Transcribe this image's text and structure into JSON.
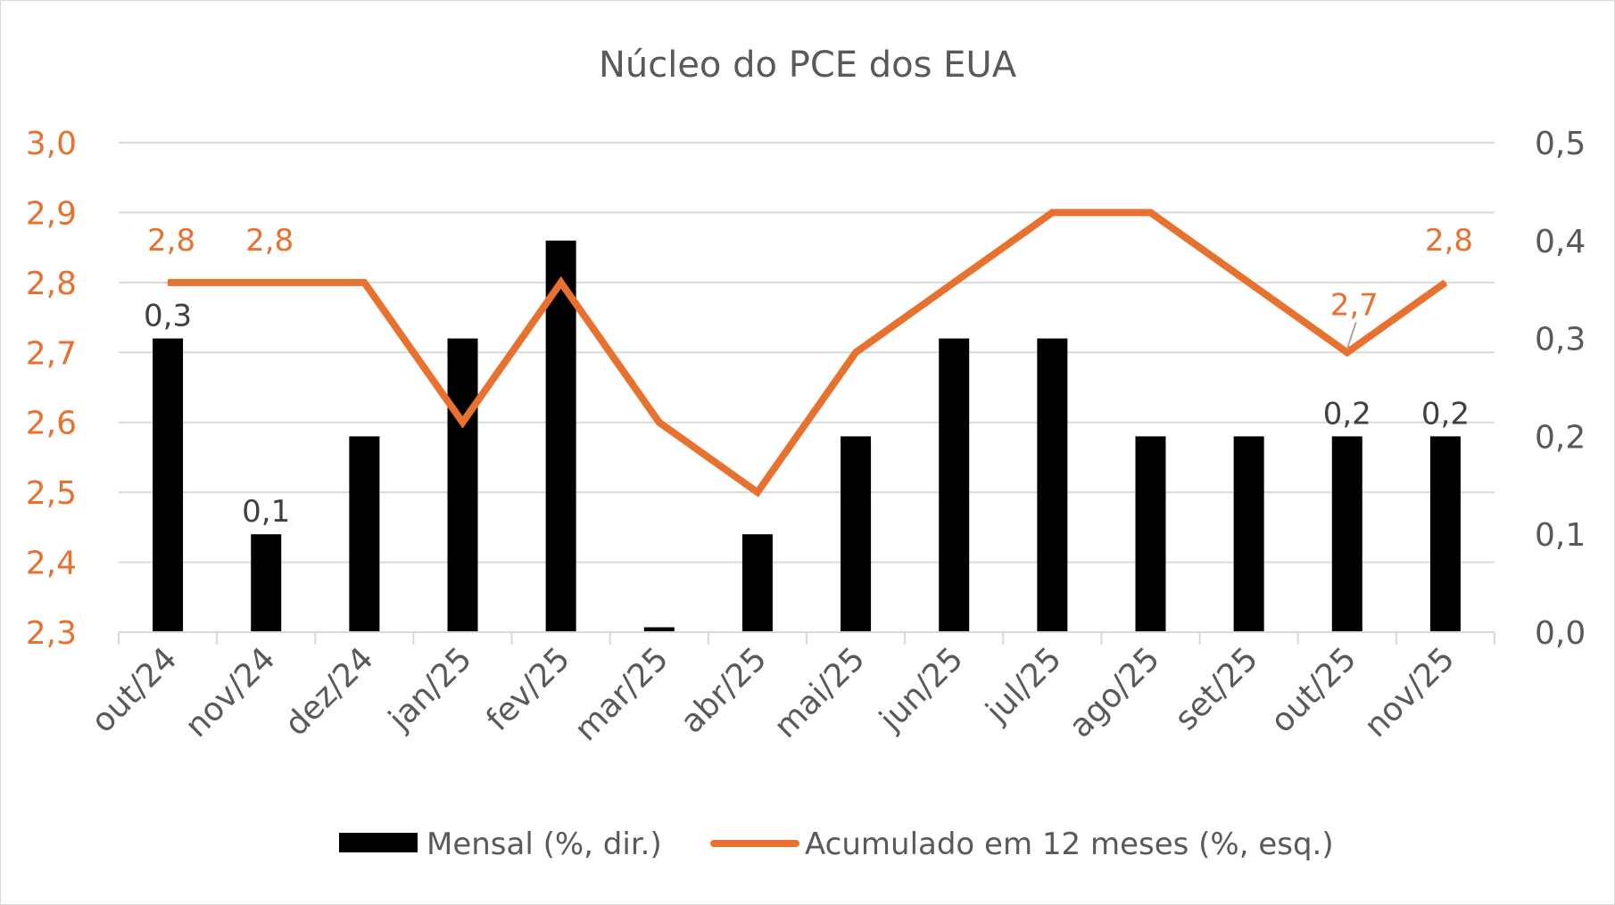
{
  "chart_data": {
    "type": "bar+line",
    "title": "Núcleo do PCE dos EUA",
    "categories": [
      "out/24",
      "nov/24",
      "dez/24",
      "jan/25",
      "fev/25",
      "mar/25",
      "abr/25",
      "mai/25",
      "jun/25",
      "jul/25",
      "ago/25",
      "set/25",
      "out/25",
      "nov/25"
    ],
    "series": [
      {
        "name": "Mensal (%, dir.)",
        "type": "bar",
        "axis": "right",
        "color": "#000000",
        "values": [
          0.3,
          0.1,
          0.2,
          0.3,
          0.4,
          0.005,
          0.1,
          0.2,
          0.3,
          0.3,
          0.2,
          0.2,
          0.2,
          0.2
        ],
        "labels": [
          "0,3",
          "0,1",
          null,
          null,
          null,
          null,
          null,
          null,
          null,
          null,
          null,
          null,
          "0,2",
          "0,2"
        ]
      },
      {
        "name": "Acumulado em 12 meses (%, esq.)",
        "type": "line",
        "axis": "left",
        "color": "#E8712F",
        "values": [
          2.8,
          2.8,
          2.8,
          2.6,
          2.8,
          2.6,
          2.5,
          2.7,
          2.8,
          2.9,
          2.9,
          2.8,
          2.7,
          2.8
        ],
        "labels": [
          "2,8",
          "2,8",
          null,
          null,
          null,
          null,
          null,
          null,
          null,
          null,
          null,
          null,
          "2,7",
          "2,8"
        ]
      }
    ],
    "left_axis": {
      "range": [
        2.3,
        3.0
      ],
      "ticks": [
        "2,3",
        "2,4",
        "2,5",
        "2,6",
        "2,7",
        "2,8",
        "2,9",
        "3,0"
      ],
      "color": "#E8712F"
    },
    "right_axis": {
      "range": [
        0.0,
        0.5
      ],
      "ticks": [
        "0,0",
        "0,1",
        "0,2",
        "0,3",
        "0,4",
        "0,5"
      ],
      "color": "#595959"
    },
    "grid": true,
    "legend": "bottom"
  }
}
